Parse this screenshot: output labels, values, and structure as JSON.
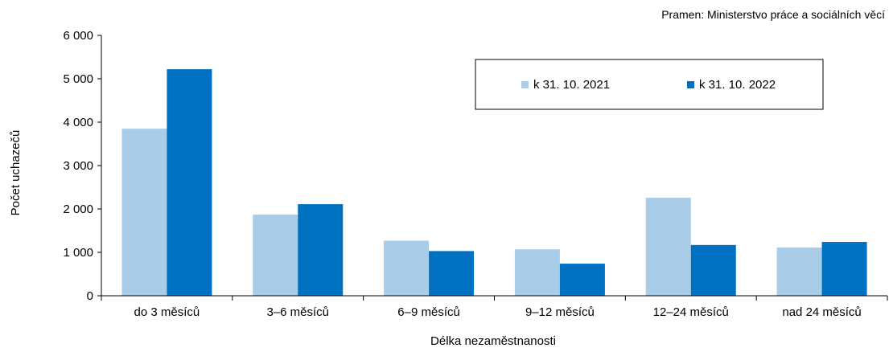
{
  "source": "Pramen: Ministerstvo práce a sociálních věcí",
  "chart_data": {
    "type": "bar",
    "title": "",
    "xlabel": "Délka nezaměstnanosti",
    "ylabel": "Počet uchazečů",
    "ylim": [
      0,
      6000
    ],
    "yticks": [
      0,
      1000,
      2000,
      3000,
      4000,
      5000,
      6000
    ],
    "ytick_labels": [
      "0",
      "1 000",
      "2 000",
      "3 000",
      "4 000",
      "5 000",
      "6 000"
    ],
    "categories": [
      "do 3 měsíců",
      "3–6 měsíců",
      "6–9 měsíců",
      "9–12 měsíců",
      "12–24 měsíců",
      "nad 24 měsíců"
    ],
    "series": [
      {
        "name": "k 31. 10. 2021",
        "color": "#a9cce8",
        "values": [
          3850,
          1870,
          1270,
          1070,
          2260,
          1110
        ]
      },
      {
        "name": "k 31. 10. 2022",
        "color": "#0070c0",
        "values": [
          5220,
          2110,
          1030,
          740,
          1170,
          1240
        ]
      }
    ],
    "grid": false,
    "legend_position": "top-right"
  }
}
